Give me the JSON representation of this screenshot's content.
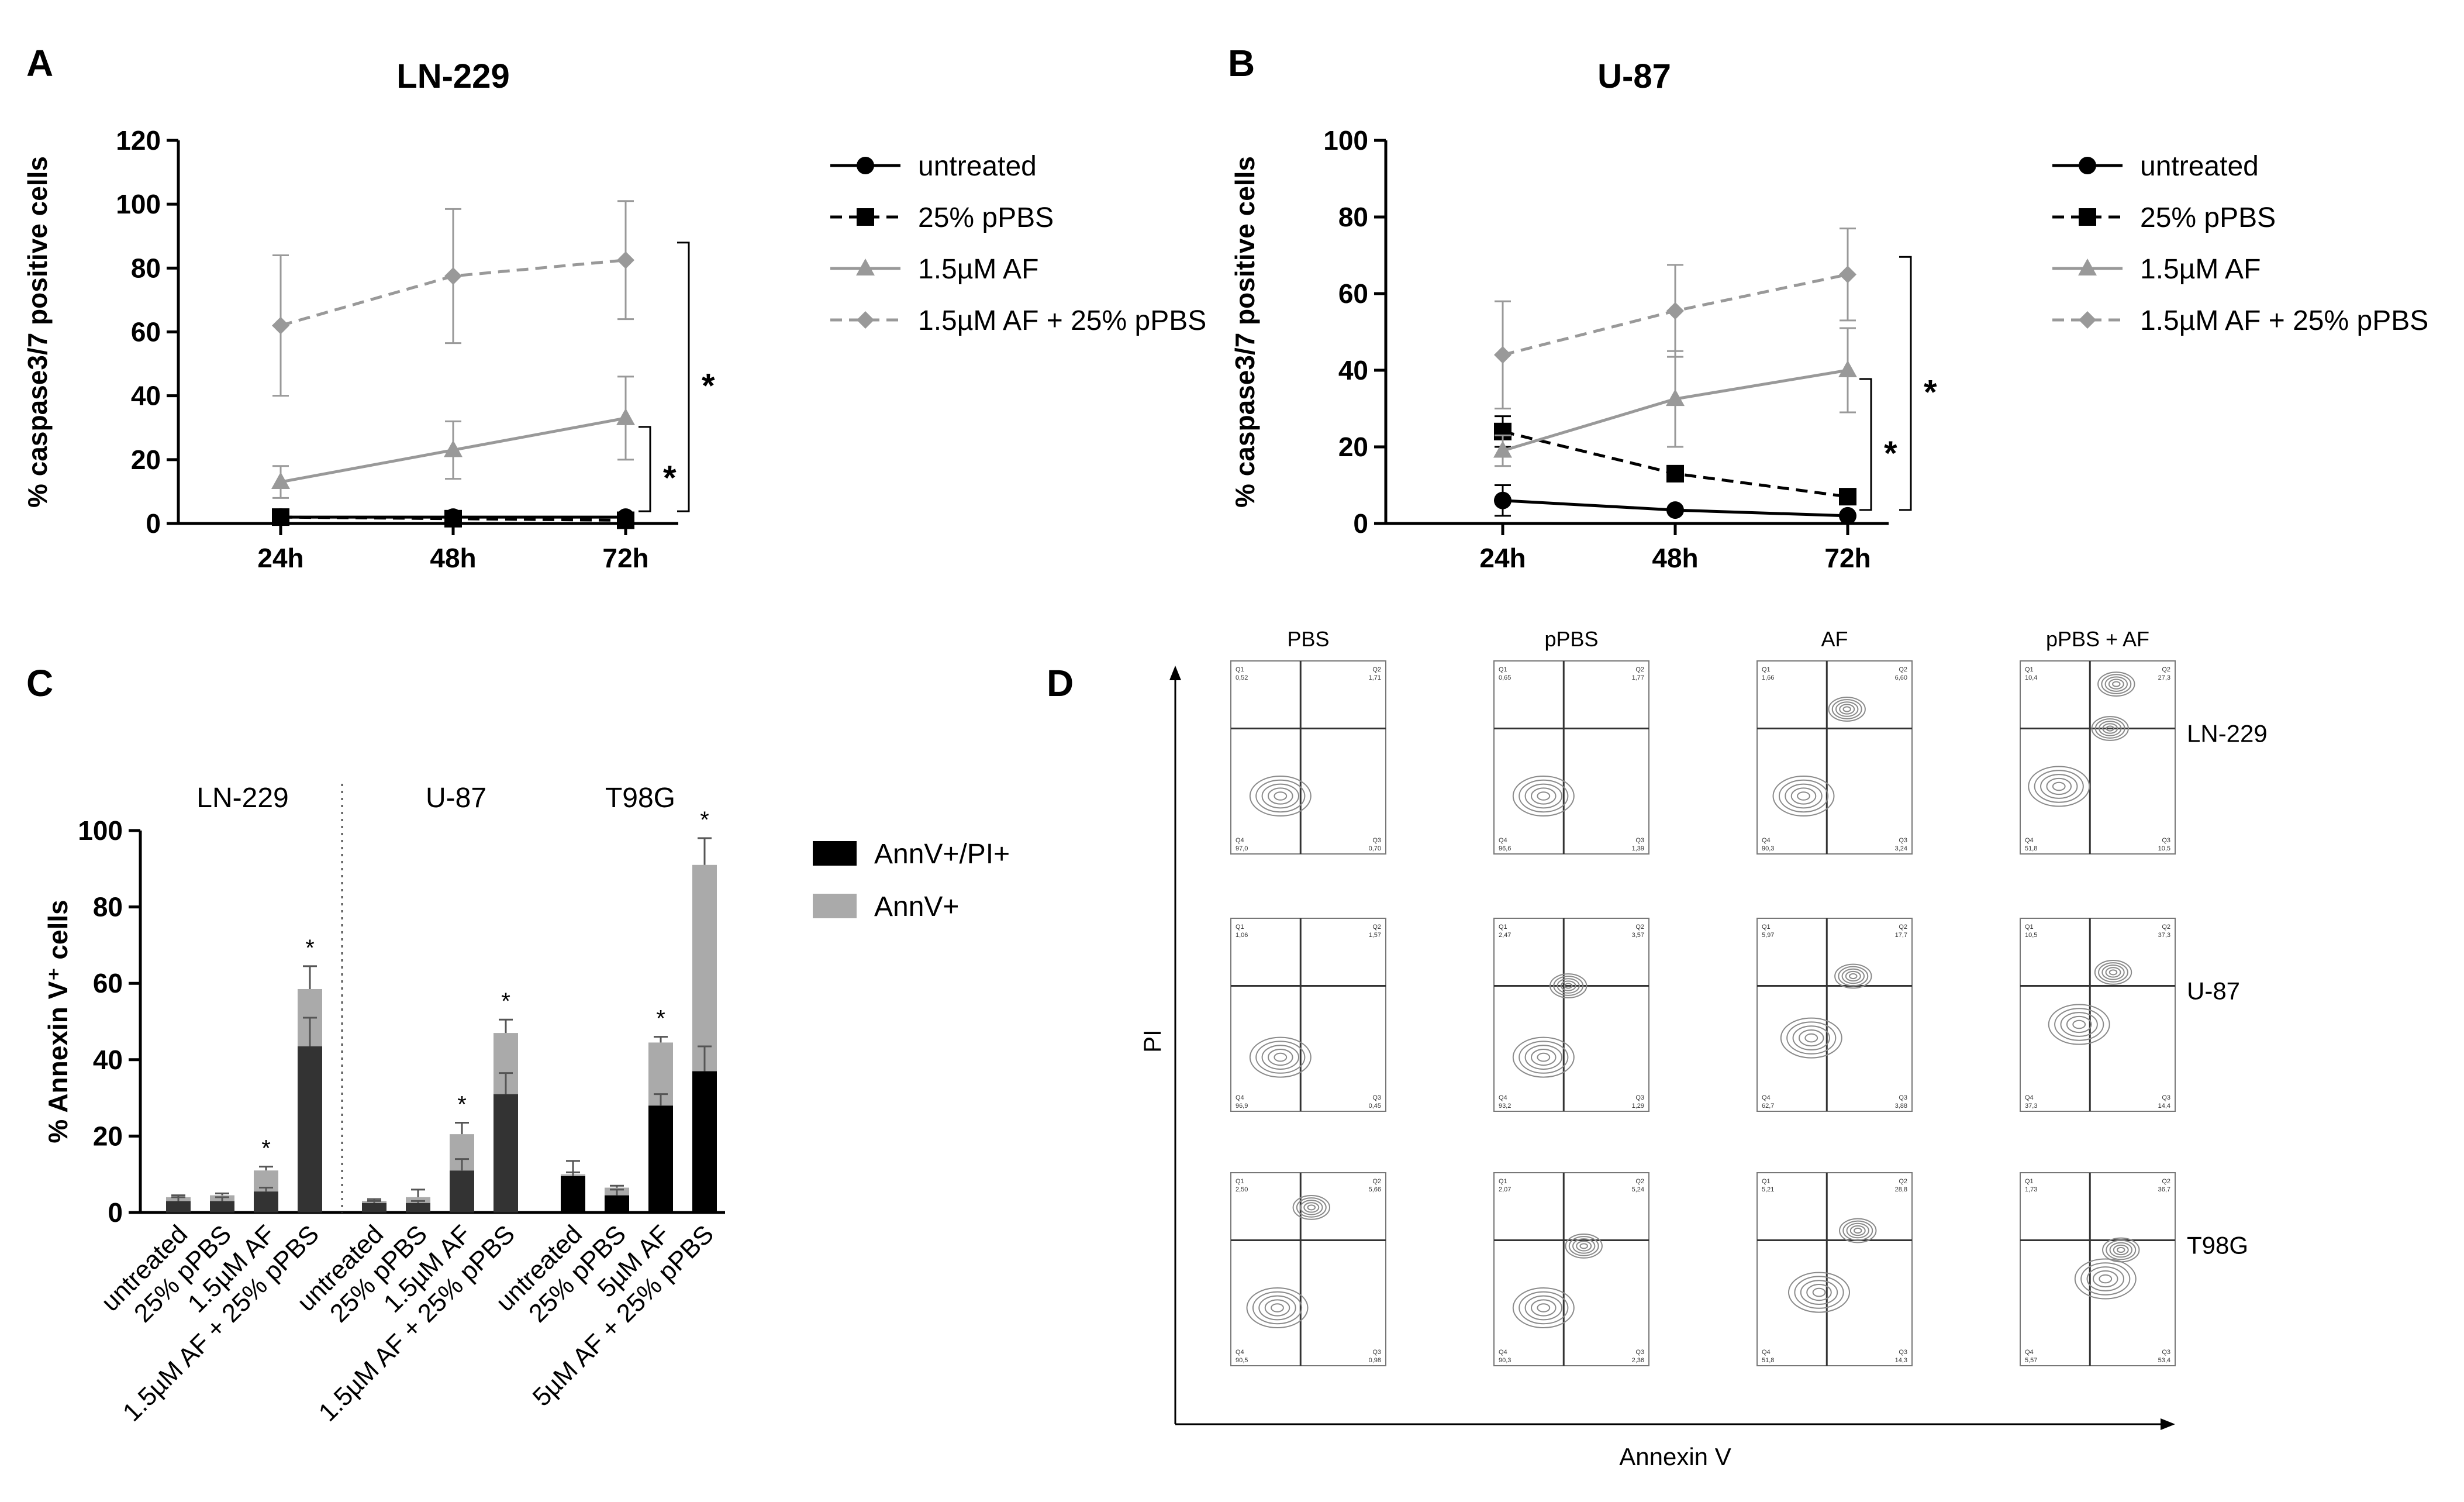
{
  "panels": {
    "a": {
      "letter": "A",
      "title": "LN-229"
    },
    "b": {
      "letter": "B",
      "title": "U-87"
    },
    "c": {
      "letter": "C"
    },
    "d": {
      "letter": "D"
    }
  },
  "chart_data": [
    {
      "id": "A",
      "type": "line",
      "title": "LN-229",
      "ylabel": "% caspase3/7 positive cells",
      "xlabel": "",
      "categories": [
        "24h",
        "48h",
        "72h"
      ],
      "ylim": [
        0,
        120
      ],
      "yticks": [
        0,
        20,
        40,
        60,
        80,
        100,
        120
      ],
      "series": [
        {
          "name": "untreated",
          "values": [
            2,
            2,
            2
          ],
          "errors": [
            0.5,
            0.5,
            0.5
          ],
          "color": "#000000",
          "dash": "solid",
          "marker": "circle"
        },
        {
          "name": "25% pPBS",
          "values": [
            2,
            1.5,
            1
          ],
          "errors": [
            0.5,
            0.5,
            0.5
          ],
          "color": "#000000",
          "dash": "dashed",
          "marker": "square"
        },
        {
          "name": "1.5µM AF",
          "values": [
            13,
            23,
            33
          ],
          "errors": [
            5,
            9,
            13
          ],
          "color": "#999999",
          "dash": "solid",
          "marker": "triangle"
        },
        {
          "name": "1.5µM AF + 25% pPBS",
          "values": [
            62,
            77.5,
            82.5
          ],
          "errors": [
            22,
            21,
            18.5
          ],
          "color": "#999999",
          "dash": "dashed",
          "marker": "diamond"
        }
      ],
      "significance": [
        "*",
        "*"
      ]
    },
    {
      "id": "B",
      "type": "line",
      "title": "U-87",
      "ylabel": "% caspase3/7 positive cells",
      "xlabel": "",
      "categories": [
        "24h",
        "48h",
        "72h"
      ],
      "ylim": [
        0,
        100
      ],
      "yticks": [
        0,
        20,
        40,
        60,
        80,
        100
      ],
      "series": [
        {
          "name": "untreated",
          "values": [
            6,
            3.5,
            2
          ],
          "errors": [
            4,
            1,
            0.5
          ],
          "color": "#000000",
          "dash": "solid",
          "marker": "circle"
        },
        {
          "name": "25% pPBS",
          "values": [
            24,
            13,
            7
          ],
          "errors": [
            4,
            1.5,
            1
          ],
          "color": "#000000",
          "dash": "dashed",
          "marker": "square"
        },
        {
          "name": "1.5µM AF",
          "values": [
            19,
            32.5,
            40
          ],
          "errors": [
            4,
            12.5,
            11
          ],
          "color": "#999999",
          "dash": "solid",
          "marker": "triangle"
        },
        {
          "name": "1.5µM AF + 25% pPBS",
          "values": [
            44,
            55.5,
            65
          ],
          "errors": [
            14,
            12,
            12
          ],
          "color": "#999999",
          "dash": "dashed",
          "marker": "diamond"
        }
      ],
      "significance": [
        "*",
        "*"
      ]
    },
    {
      "id": "C",
      "type": "bar",
      "stacked": true,
      "ylabel": "% Annexin V⁺ cells",
      "ylim": [
        0,
        100
      ],
      "yticks": [
        0,
        20,
        40,
        60,
        80,
        100
      ],
      "groups": [
        "LN-229",
        "U-87",
        "T98G"
      ],
      "categories": [
        "untreated",
        "25% pPBS",
        "1.5µM AF",
        "1.5µM AF + 25% pPBS",
        "untreated",
        "25% pPBS",
        "1.5µM AF",
        "1.5µM AF + 25% pPBS",
        "untreated",
        "25% pPBS",
        "5µM AF",
        "5µM AF + 25% pPBS"
      ],
      "series": [
        {
          "name": "AnnV+/PI+",
          "color": "#000000",
          "values": [
            3,
            3,
            5.5,
            43.5,
            2.5,
            2.5,
            11,
            31,
            9.5,
            4.5,
            28,
            37
          ],
          "errors": [
            1,
            1,
            1,
            7.5,
            0.5,
            0.5,
            3,
            5.5,
            4,
            1.5,
            3,
            6.5
          ]
        },
        {
          "name": "AnnV+",
          "color": "#aaaaaa",
          "values": [
            1,
            1.5,
            5.5,
            15,
            0.5,
            1.5,
            9.5,
            16,
            0.5,
            2,
            16.5,
            54
          ],
          "errors": [
            0.5,
            0.5,
            1,
            6,
            0.5,
            2,
            3,
            3.5,
            0.5,
            0.5,
            1.5,
            7
          ]
        }
      ],
      "significance": [
        "",
        "",
        "*",
        "*",
        "",
        "",
        "*",
        "*",
        "",
        "",
        "*",
        "*"
      ]
    },
    {
      "id": "D",
      "type": "scatter",
      "xlabel": "Annexin V",
      "ylabel": "PI",
      "columns": [
        "PBS",
        "pPBS",
        "AF",
        "pPBS + AF"
      ],
      "rows": [
        "LN-229",
        "U-87",
        "T98G"
      ],
      "quadrants": [
        [
          [
            "0,52",
            "1,71",
            "97,0",
            "0,70"
          ],
          [
            "0,65",
            "1,77",
            "96,6",
            "1,39"
          ],
          [
            "1,66",
            "6,60",
            "90,3",
            "3,24"
          ],
          [
            "10,4",
            "27,3",
            "51,8",
            "10,5"
          ]
        ],
        [
          [
            "1,06",
            "1,57",
            "96,9",
            "0,45"
          ],
          [
            "2,47",
            "3,57",
            "93,2",
            "1,29"
          ],
          [
            "5,97",
            "17,7",
            "62,7",
            "3,88"
          ],
          [
            "10,5",
            "37,3",
            "37,3",
            "14,4"
          ]
        ],
        [
          [
            "2,50",
            "5,66",
            "90,5",
            "0,98"
          ],
          [
            "2,07",
            "5,24",
            "90,3",
            "2,36"
          ],
          [
            "5,21",
            "28,8",
            "51,8",
            "14,3"
          ],
          [
            "1,73",
            "36,7",
            "5,57",
            "53,4"
          ]
        ]
      ]
    }
  ]
}
